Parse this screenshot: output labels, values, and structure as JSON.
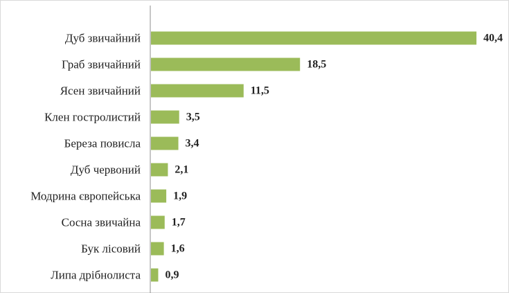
{
  "chart_data": {
    "type": "bar",
    "orientation": "horizontal",
    "categories": [
      "Дуб звичайний",
      "Граб звичайний",
      "Ясен звичайний",
      "Клен гостролистий",
      "Береза повисла",
      "Дуб червоний",
      "Модрина європейська",
      "Сосна звичайна",
      "Бук лісовий",
      "Липа дрібнолиста"
    ],
    "values": [
      40.4,
      18.5,
      11.5,
      3.5,
      3.4,
      2.1,
      1.9,
      1.7,
      1.6,
      0.9
    ],
    "value_labels": [
      "40,4",
      "18,5",
      "11,5",
      "3,5",
      "3,4",
      "2,1",
      "1,9",
      "1,7",
      "1,6",
      "0,9"
    ],
    "title": "",
    "xlabel": "",
    "ylabel": "",
    "xlim": [
      0,
      40.4
    ],
    "grid": false,
    "legend": "none",
    "bar_color": "#9bbb59"
  }
}
